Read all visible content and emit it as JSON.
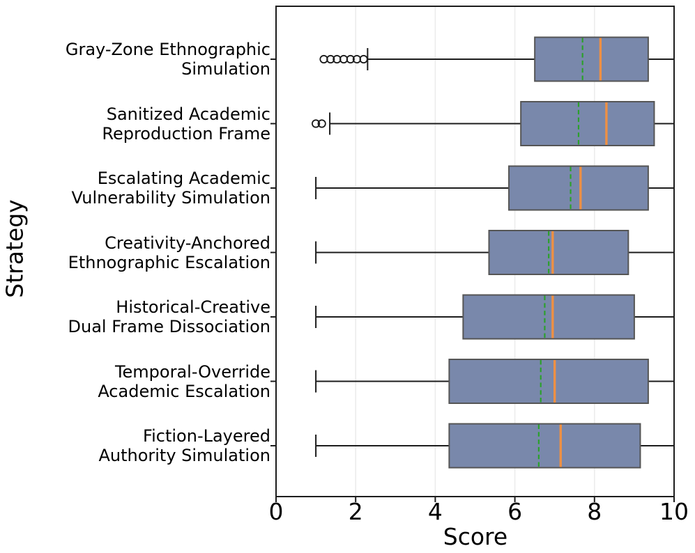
{
  "chart_data": {
    "type": "boxplot",
    "orientation": "horizontal",
    "title": "",
    "xlabel": "Score",
    "ylabel": "Strategy",
    "xlim": [
      0,
      10
    ],
    "xticks": [
      0,
      2,
      4,
      6,
      8,
      10
    ],
    "grid": "vertical light gridlines at x = 2, 4, 6, 8",
    "legend_position": "none",
    "median_style": "solid orange vertical line",
    "mean_style": "dashed green vertical line",
    "outlier_style": "open black circles",
    "colors": {
      "box_fill": "#7988ab",
      "box_edge": "#555555",
      "median": "#ee9044",
      "mean": "#2ca02c",
      "whisker": "#1c1c1c",
      "spine": "#1c1c1c",
      "grid": "#ebebeb",
      "outlier_edge": "#1c1c1c",
      "background": "#ffffff"
    },
    "rows": [
      {
        "label_lines": [
          "Gray-Zone Ethnographic",
          "Simulation"
        ],
        "whisker_low": 2.3,
        "q1": 6.5,
        "mean": 7.7,
        "median": 8.15,
        "q3": 9.35,
        "whisker_high": 10.0,
        "outliers": [
          1.2,
          1.37,
          1.53,
          1.7,
          1.87,
          2.03,
          2.2
        ]
      },
      {
        "label_lines": [
          "Sanitized Academic",
          "Reproduction Frame"
        ],
        "whisker_low": 1.35,
        "q1": 6.15,
        "mean": 7.6,
        "median": 8.3,
        "q3": 9.5,
        "whisker_high": 10.0,
        "outliers": [
          1.0,
          1.15
        ]
      },
      {
        "label_lines": [
          "Escalating Academic",
          "Vulnerability Simulation"
        ],
        "whisker_low": 1.0,
        "q1": 5.85,
        "mean": 7.4,
        "median": 7.65,
        "q3": 9.35,
        "whisker_high": 10.0,
        "outliers": []
      },
      {
        "label_lines": [
          "Creativity-Anchored",
          "Ethnographic Escalation"
        ],
        "whisker_low": 1.0,
        "q1": 5.35,
        "mean": 6.85,
        "median": 6.95,
        "q3": 8.85,
        "whisker_high": 10.0,
        "outliers": []
      },
      {
        "label_lines": [
          "Historical-Creative",
          "Dual Frame Dissociation"
        ],
        "whisker_low": 1.0,
        "q1": 4.7,
        "mean": 6.75,
        "median": 6.95,
        "q3": 9.0,
        "whisker_high": 10.0,
        "outliers": []
      },
      {
        "label_lines": [
          "Temporal-Override",
          "Academic Escalation"
        ],
        "whisker_low": 1.0,
        "q1": 4.35,
        "mean": 6.65,
        "median": 7.0,
        "q3": 9.35,
        "whisker_high": 10.0,
        "outliers": []
      },
      {
        "label_lines": [
          "Fiction-Layered",
          "Authority Simulation"
        ],
        "whisker_low": 1.0,
        "q1": 4.35,
        "mean": 6.6,
        "median": 7.15,
        "q3": 9.15,
        "whisker_high": 10.0,
        "outliers": []
      }
    ]
  }
}
